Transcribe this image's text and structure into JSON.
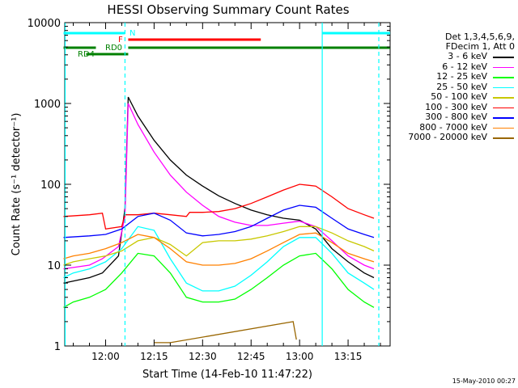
{
  "chart_data": {
    "type": "line",
    "title": "HESSI Observing Summary Count Rates",
    "xlabel": "Start Time (14-Feb-10 11:47:22)",
    "ylabel": "Count Rate (s⁻¹ detector⁻¹)",
    "xlim": [
      "11:47:22",
      "13:28:00"
    ],
    "ylim": [
      1,
      10000
    ],
    "y_scale": "log",
    "x_ticks": [
      "12:00",
      "12:15",
      "12:30",
      "12:45",
      "13:00",
      "13:15"
    ],
    "y_ticks": [
      "1",
      "10",
      "100",
      "1000",
      "10000"
    ],
    "legend_position": "right, outside plot",
    "legend_header": [
      "Det 1,3,4,5,6,9,",
      "FDecim 1, Att 0"
    ],
    "series": [
      {
        "name": "3 - 6 keV",
        "color": "#000000",
        "x": [
          "11:47",
          "11:55",
          "11:59",
          "12:04",
          "12:06",
          "12:07",
          "12:10",
          "12:15",
          "12:20",
          "12:25",
          "12:30",
          "12:35",
          "12:40",
          "12:45",
          "12:50",
          "12:55",
          "13:00",
          "13:05",
          "13:10",
          "13:15",
          "13:20",
          "13:23"
        ],
        "y": [
          6,
          7,
          8,
          13,
          50,
          1200,
          700,
          350,
          200,
          130,
          95,
          72,
          58,
          48,
          42,
          38,
          36,
          28,
          16,
          11,
          8,
          7
        ]
      },
      {
        "name": "6 - 12 keV",
        "color": "#ff00ff",
        "x": [
          "11:47",
          "11:55",
          "11:59",
          "12:04",
          "12:06",
          "12:07",
          "12:10",
          "12:15",
          "12:20",
          "12:25",
          "12:30",
          "12:35",
          "12:40",
          "12:45",
          "12:50",
          "12:55",
          "13:00",
          "13:05",
          "13:10",
          "13:15",
          "13:20",
          "13:23"
        ],
        "y": [
          9,
          10,
          12,
          17,
          40,
          1000,
          550,
          250,
          130,
          80,
          55,
          40,
          34,
          31,
          31,
          33,
          35,
          30,
          20,
          13,
          10,
          9
        ]
      },
      {
        "name": "12 - 25 keV",
        "color": "#00ff00",
        "x": [
          "11:47",
          "11:50",
          "11:55",
          "12:00",
          "12:05",
          "12:10",
          "12:15",
          "12:20",
          "12:25",
          "12:30",
          "12:35",
          "12:40",
          "12:45",
          "12:50",
          "12:55",
          "13:00",
          "13:05",
          "13:10",
          "13:15",
          "13:20",
          "13:23"
        ],
        "y": [
          3,
          3.5,
          4,
          5,
          8,
          14,
          13,
          8,
          4,
          3.5,
          3.5,
          3.8,
          5,
          7,
          10,
          13,
          14,
          9,
          5,
          3.5,
          3
        ]
      },
      {
        "name": "25 - 50 keV",
        "color": "#00ffff",
        "x": [
          "11:47",
          "11:50",
          "11:55",
          "12:00",
          "12:05",
          "12:10",
          "12:15",
          "12:20",
          "12:25",
          "12:30",
          "12:35",
          "12:40",
          "12:45",
          "12:50",
          "12:55",
          "13:00",
          "13:05",
          "13:10",
          "13:15",
          "13:20",
          "13:23"
        ],
        "y": [
          7,
          8,
          9,
          11,
          16,
          30,
          27,
          12,
          6,
          4.8,
          4.8,
          5.5,
          7.5,
          11,
          17,
          22,
          22,
          14,
          8,
          6,
          5
        ]
      },
      {
        "name": "50 - 100 keV",
        "color": "#c8c800",
        "x": [
          "11:47",
          "11:50",
          "11:55",
          "12:00",
          "12:05",
          "12:10",
          "12:15",
          "12:20",
          "12:25",
          "12:30",
          "12:35",
          "12:40",
          "12:45",
          "12:50",
          "12:55",
          "13:00",
          "13:05",
          "13:10",
          "13:15",
          "13:20",
          "13:23"
        ],
        "y": [
          10,
          11,
          12,
          13,
          15,
          20,
          22,
          18,
          13,
          19,
          20,
          20,
          21,
          23,
          26,
          30,
          30,
          25,
          20,
          17,
          15
        ]
      },
      {
        "name": "100 - 300 keV",
        "color": "#ff0000",
        "x": [
          "11:47",
          "11:55",
          "11:59",
          "12:00",
          "12:05",
          "12:06",
          "12:10",
          "12:15",
          "12:20",
          "12:25",
          "12:26",
          "12:30",
          "12:35",
          "12:40",
          "12:45",
          "12:50",
          "12:55",
          "13:00",
          "13:05",
          "13:10",
          "13:15",
          "13:20",
          "13:23"
        ],
        "y": [
          40,
          42,
          44,
          28,
          30,
          42,
          42,
          44,
          42,
          40,
          45,
          45,
          46,
          50,
          58,
          70,
          85,
          100,
          95,
          70,
          50,
          42,
          38
        ]
      },
      {
        "name": "300 - 800 keV",
        "color": "#0000ff",
        "x": [
          "11:47",
          "11:55",
          "12:00",
          "12:05",
          "12:10",
          "12:15",
          "12:20",
          "12:25",
          "12:30",
          "12:35",
          "12:40",
          "12:45",
          "12:50",
          "12:55",
          "13:00",
          "13:05",
          "13:10",
          "13:15",
          "13:20",
          "13:23"
        ],
        "y": [
          22,
          23,
          24,
          28,
          40,
          44,
          36,
          25,
          23,
          24,
          26,
          30,
          38,
          48,
          55,
          52,
          38,
          28,
          24,
          22
        ]
      },
      {
        "name": "800 - 7000 keV",
        "color": "#ff8000",
        "x": [
          "11:47",
          "11:50",
          "11:55",
          "12:00",
          "12:05",
          "12:10",
          "12:15",
          "12:20",
          "12:25",
          "12:30",
          "12:35",
          "12:40",
          "12:45",
          "12:50",
          "12:55",
          "13:00",
          "13:05",
          "13:10",
          "13:15",
          "13:20",
          "13:23"
        ],
        "y": [
          12,
          13,
          14,
          16,
          19,
          24,
          22,
          16,
          11,
          10,
          10,
          10.5,
          12,
          15,
          19,
          24,
          25,
          19,
          14,
          12,
          11
        ]
      },
      {
        "name": "7000 - 20000 keV",
        "color": "#996600",
        "x": [
          "12:15",
          "12:20",
          "12:58",
          "12:59"
        ],
        "y": [
          1.1,
          1.1,
          2.0,
          1.2
        ]
      }
    ],
    "annotations": [
      {
        "text": "N",
        "color": "#00ffff"
      },
      {
        "text": "F",
        "color": "#ff0000"
      },
      {
        "text": "RD0",
        "color": "#008000"
      },
      {
        "text": "RD4",
        "color": "#008000"
      }
    ],
    "bars": [
      {
        "label": "N",
        "color": "#00ffff",
        "segments": [
          [
            "11:47",
            "12:06"
          ],
          [
            "13:07",
            "13:28"
          ]
        ]
      },
      {
        "label": "F",
        "color": "#ff0000",
        "segments": [
          [
            "12:07",
            "12:48"
          ]
        ]
      },
      {
        "label": "RD0",
        "color": "#008000",
        "segments": [
          [
            "11:47",
            "11:57"
          ],
          [
            "12:07",
            "13:28"
          ]
        ]
      },
      {
        "label": "RD4",
        "color": "#008000",
        "segments": [
          [
            "11:54",
            "12:07"
          ]
        ]
      }
    ],
    "vlines": [
      {
        "time": "11:47:30",
        "color": "#00ffff",
        "style": "solid"
      },
      {
        "time": "12:06:00",
        "color": "#00ffff",
        "style": "dashed"
      },
      {
        "time": "13:07:00",
        "color": "#00ffff",
        "style": "solid"
      },
      {
        "time": "13:24:30",
        "color": "#00ffff",
        "style": "dashed"
      }
    ]
  },
  "footer": {
    "timestamp": "15-May-2010 00:27"
  }
}
